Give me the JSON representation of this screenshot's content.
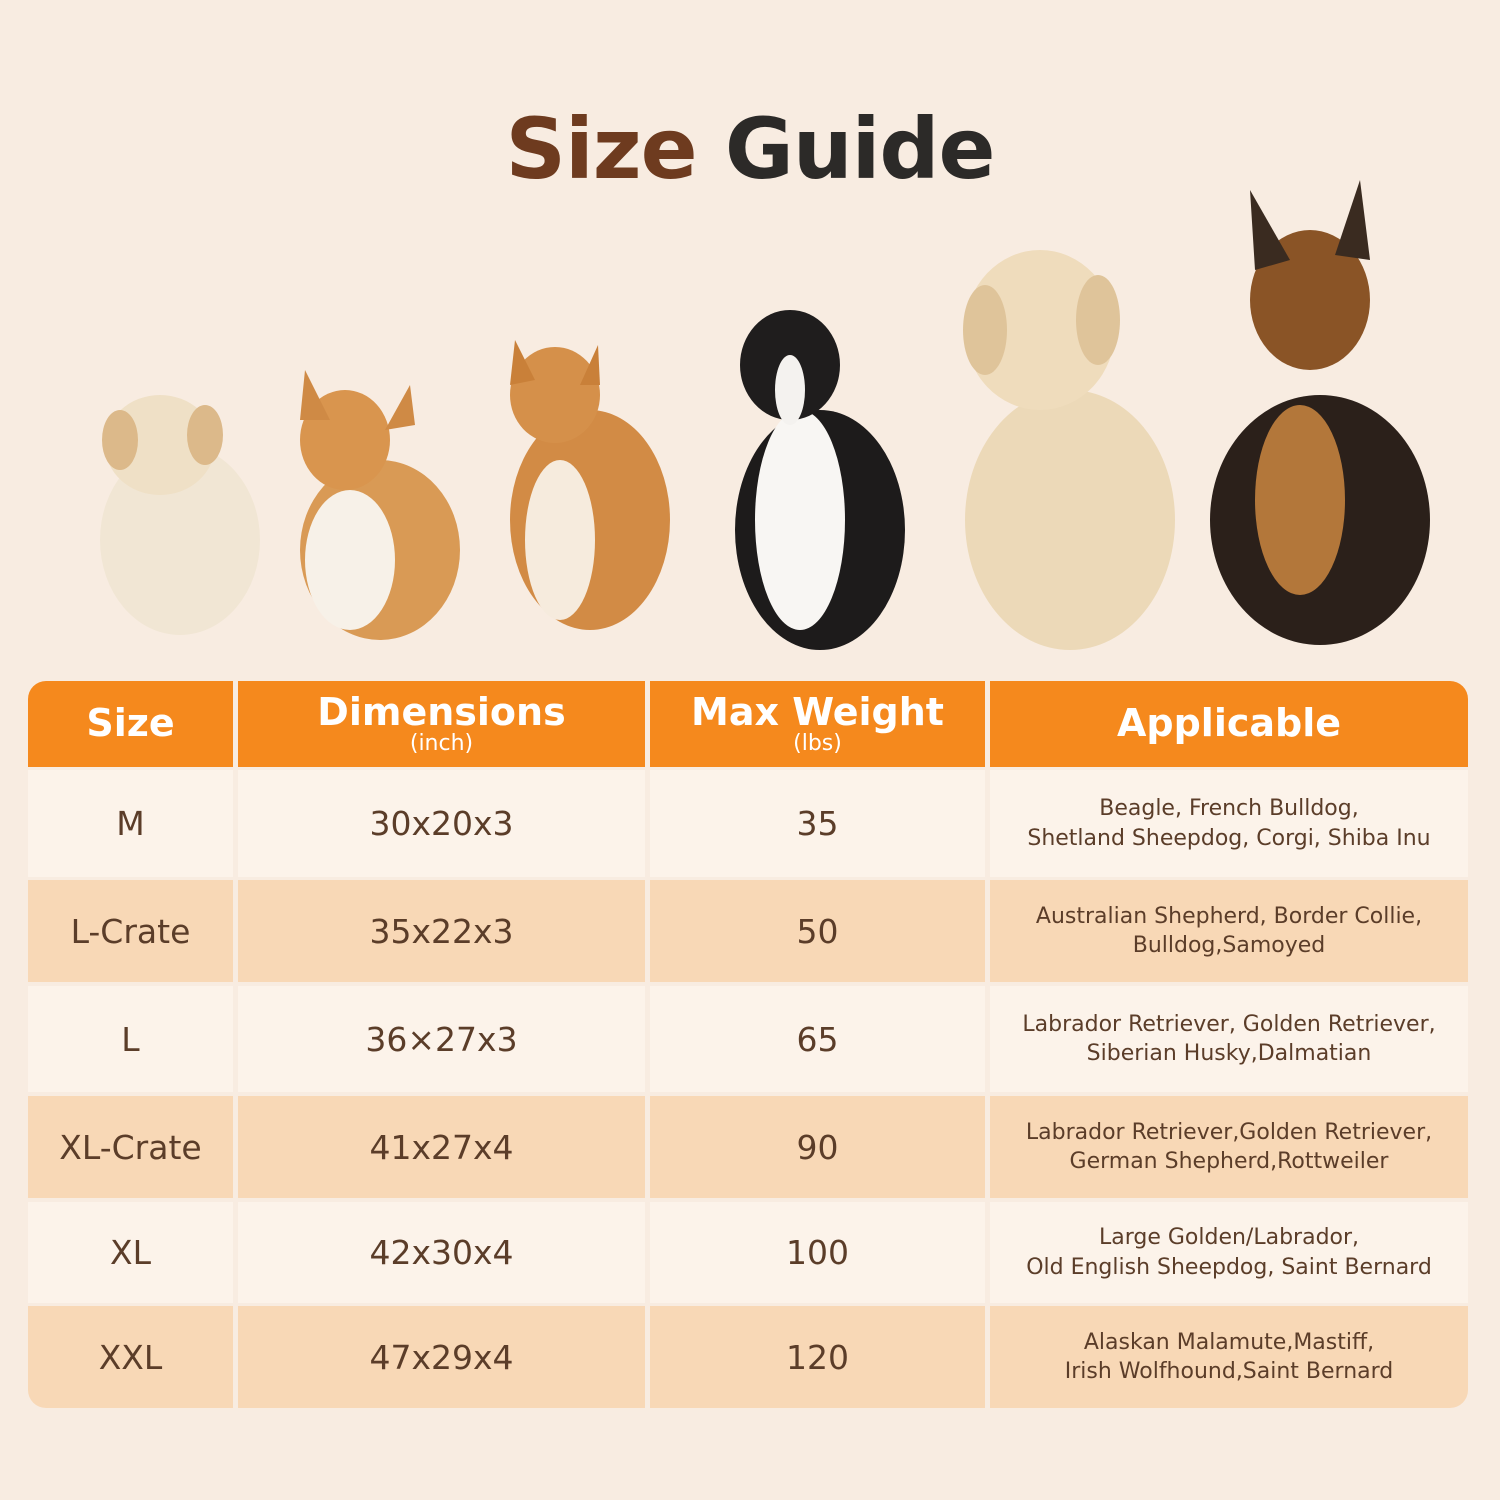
{
  "title": {
    "part1": "Size",
    "part2": "Guide"
  },
  "table": {
    "headers": [
      {
        "label": "Size"
      },
      {
        "label": "Dimensions",
        "unit": "(inch)"
      },
      {
        "label": "Max Weight",
        "unit": "(lbs)"
      },
      {
        "label": "Applicable"
      }
    ],
    "rows": [
      {
        "size": "M",
        "dimensions": "30x20x3",
        "max_weight": "35",
        "applicable": [
          "Beagle, French Bulldog,",
          "Shetland Sheepdog, Corgi, Shiba Inu"
        ]
      },
      {
        "size": "L-Crate",
        "dimensions": "35x22x3",
        "max_weight": "50",
        "applicable": [
          "Australian Shepherd, Border Collie,",
          "Bulldog,Samoyed"
        ]
      },
      {
        "size": "L",
        "dimensions": "36×27x3",
        "max_weight": "65",
        "applicable": [
          "Labrador Retriever, Golden Retriever,",
          "Siberian Husky,Dalmatian"
        ]
      },
      {
        "size": "XL-Crate",
        "dimensions": "41x27x4",
        "max_weight": "90",
        "applicable": [
          "Labrador Retriever,Golden Retriever,",
          "German Shepherd,Rottweiler"
        ]
      },
      {
        "size": "XL",
        "dimensions": "42x30x4",
        "max_weight": "100",
        "applicable": [
          "Large Golden/Labrador,",
          "Old English Sheepdog, Saint Bernard"
        ]
      },
      {
        "size": "XXL",
        "dimensions": "47x29x4",
        "max_weight": "120",
        "applicable": [
          "Alaskan Malamute,Mastiff,",
          "Irish Wolfhound,Saint Bernard"
        ]
      }
    ]
  }
}
